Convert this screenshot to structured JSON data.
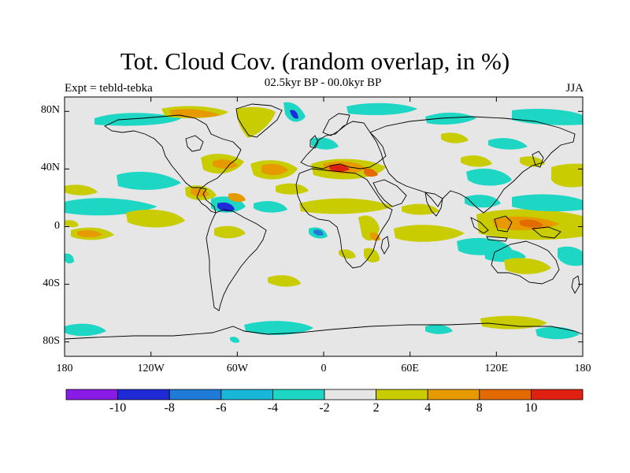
{
  "title": "Tot. Cloud Cov. (random overlap, in %)",
  "subtitle": "02.5kyr BP - 00.0kyr BP",
  "left_label": "Expt = tebld-tebka",
  "right_label": "JJA",
  "lat_labels": [
    "80N",
    "40N",
    "0",
    "40S",
    "80S"
  ],
  "lat_values": [
    80,
    40,
    0,
    -40,
    -80
  ],
  "lon_labels": [
    "180",
    "120W",
    "60W",
    "0",
    "60E",
    "120E",
    "180"
  ],
  "lon_values": [
    -180,
    -120,
    -60,
    0,
    60,
    120,
    180
  ],
  "colorbar": {
    "colors": [
      "#8a1ae6",
      "#1e2bd6",
      "#1f7ad8",
      "#19b6d9",
      "#1ed6c4",
      "#e6e6e6",
      "#c8cc00",
      "#e69a00",
      "#e26a00",
      "#e02010"
    ],
    "tick_labels": [
      "-10",
      "-8",
      "-6",
      "-4",
      "-2",
      "2",
      "4",
      "8",
      "10"
    ]
  },
  "colors": {
    "background_field": "#e6e6e6",
    "coastline": "#000000",
    "frame": "#000000"
  }
}
